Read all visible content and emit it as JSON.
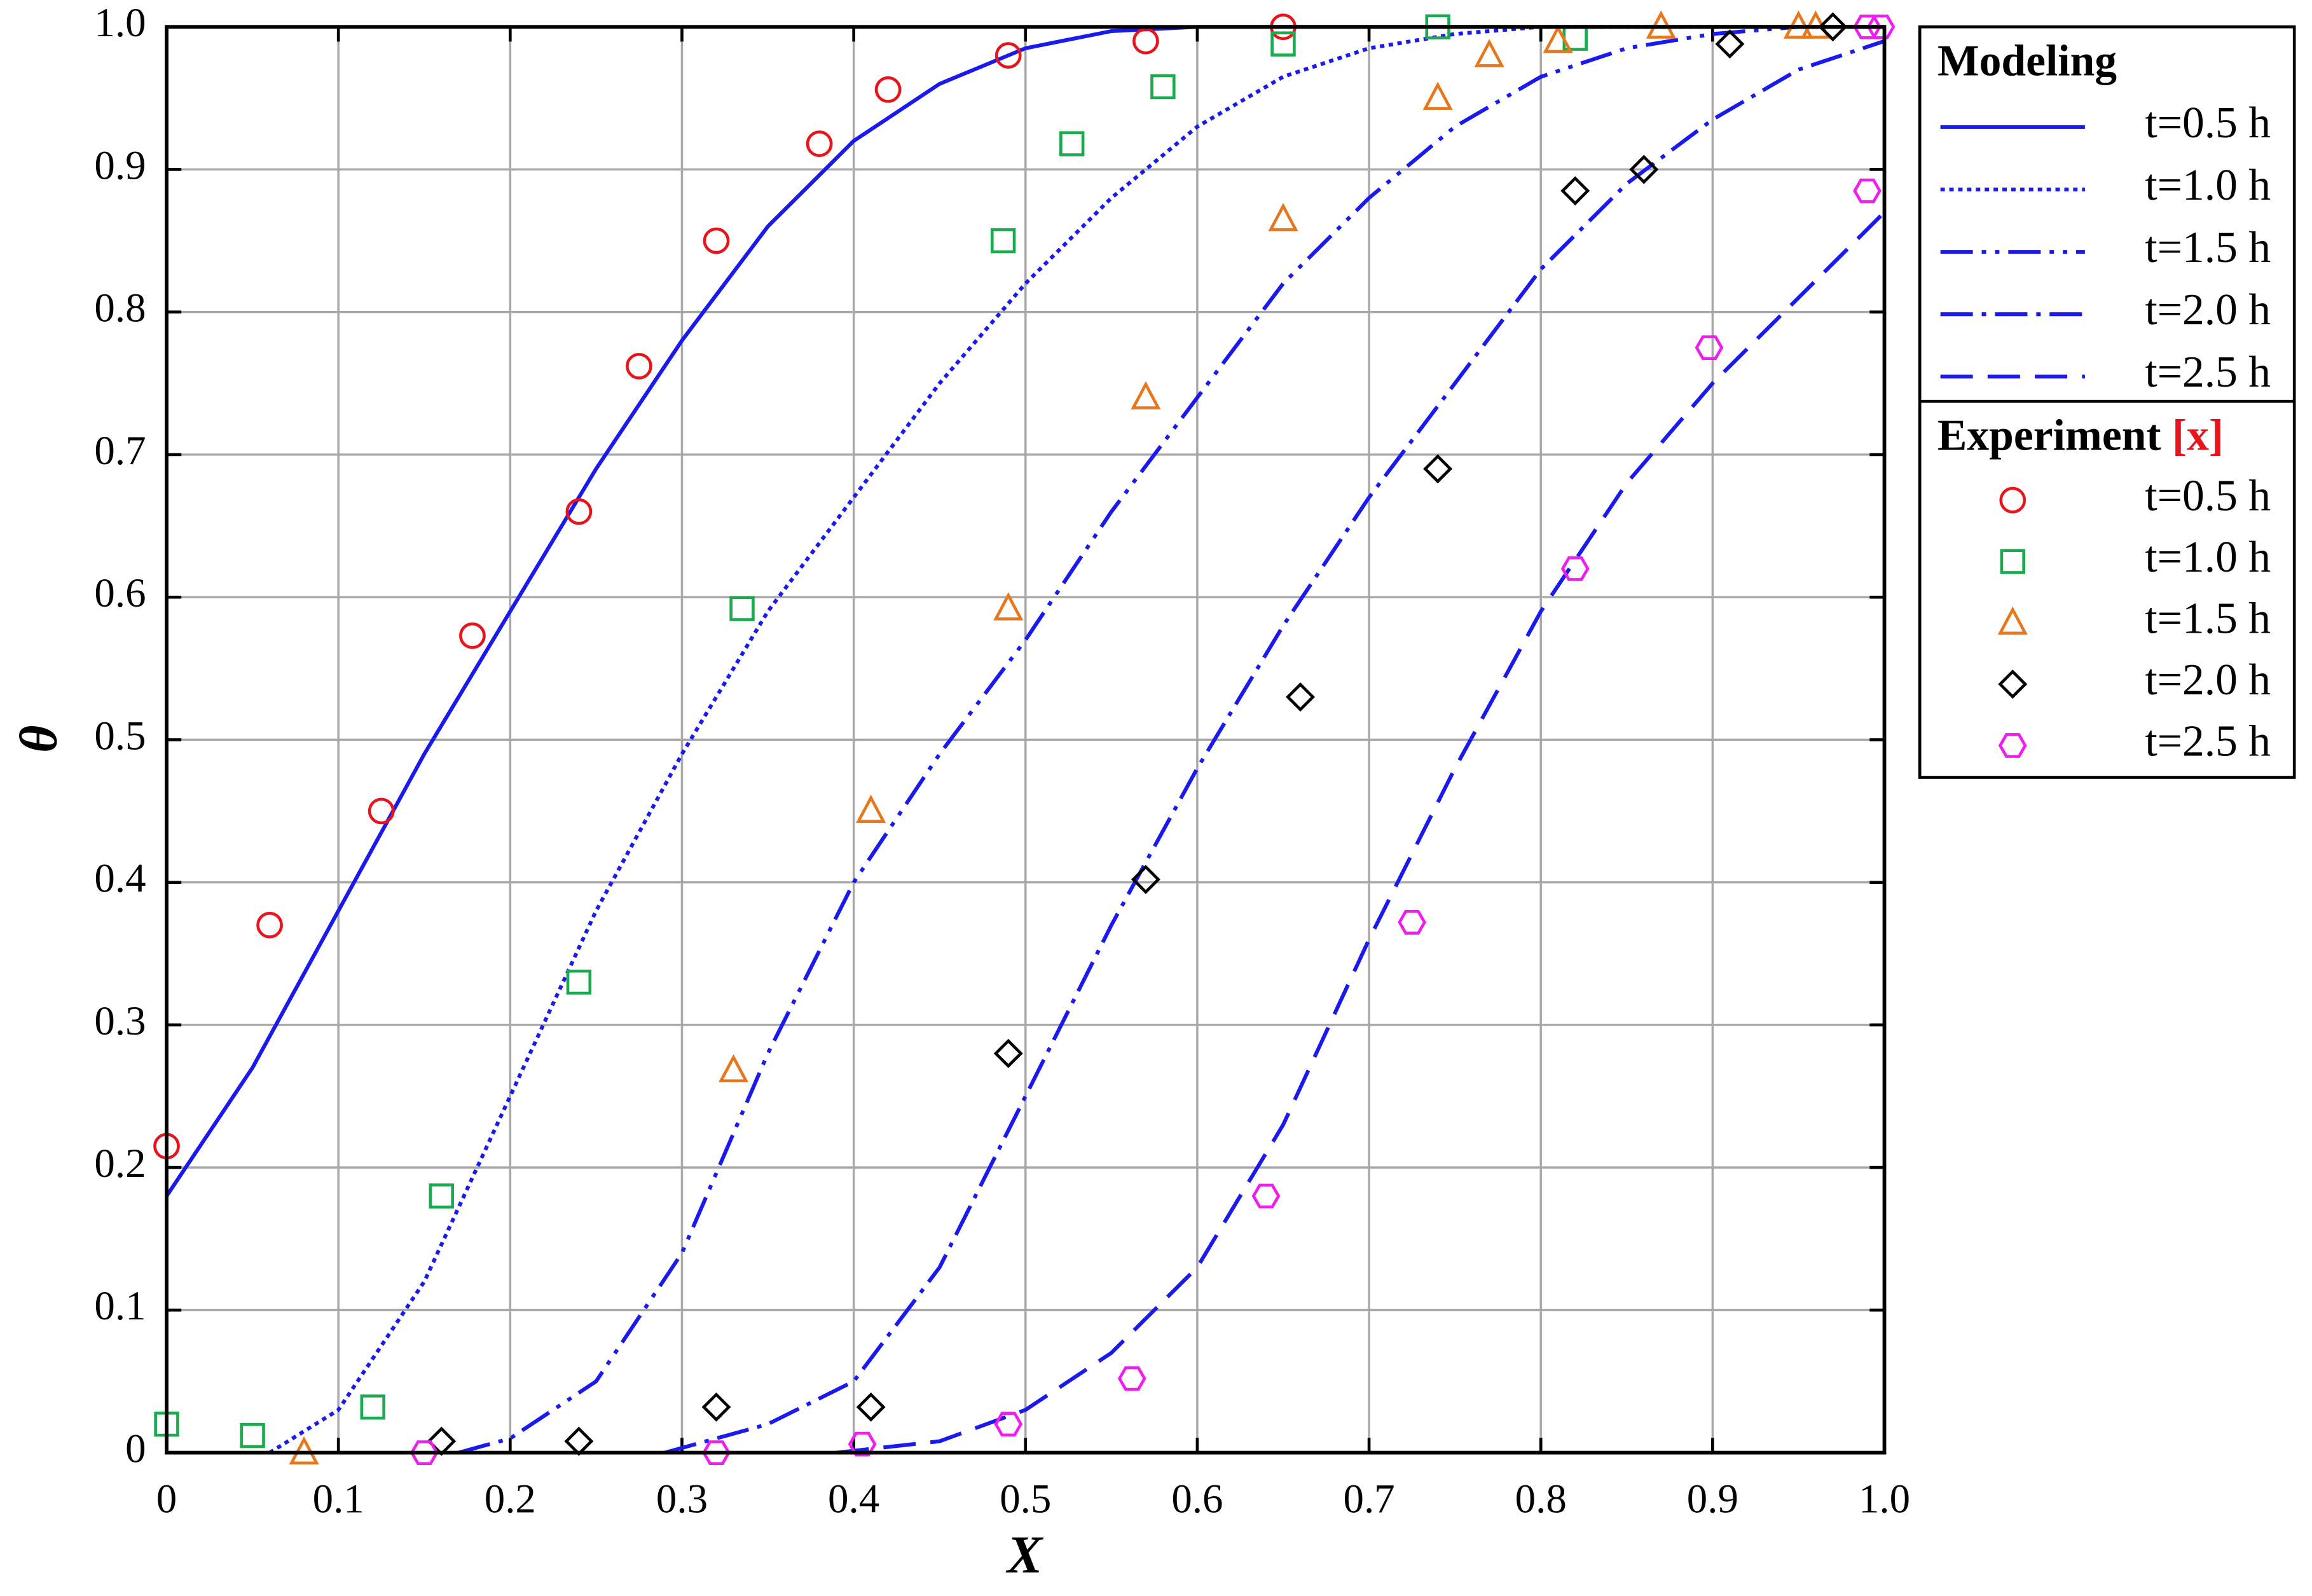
{
  "chart_data": {
    "type": "line",
    "x_label": "X",
    "y_label": "θ",
    "xlim": [
      0,
      1
    ],
    "ylim": [
      0,
      1
    ],
    "xticks": [
      0,
      0.1,
      0.2,
      0.3,
      0.4,
      0.5,
      0.6,
      0.7,
      0.8,
      0.9,
      {
        "value": 1,
        "label": "1.0"
      }
    ],
    "yticks": [
      0,
      0.1,
      0.2,
      0.3,
      0.4,
      0.5,
      0.6,
      0.7,
      0.8,
      0.9,
      {
        "value": 1,
        "label": "1.0"
      }
    ],
    "grid": true,
    "legend": "outside-right",
    "model_title": "Modeling",
    "experiment_title": "Experiment",
    "experiment_ref": "[x]",
    "model_series": [
      {
        "name": "t=0.5 h",
        "color": "#1a1aee",
        "dash": "solid",
        "x": [
          0,
          0.05,
          0.1,
          0.15,
          0.2,
          0.25,
          0.3,
          0.35,
          0.4,
          0.45,
          0.5,
          0.55,
          0.6,
          0.7,
          0.8,
          0.9,
          1
        ],
        "values": [
          0.18,
          0.27,
          0.38,
          0.49,
          0.59,
          0.69,
          0.78,
          0.86,
          0.92,
          0.96,
          0.985,
          0.997,
          1,
          1,
          1,
          1,
          1
        ]
      },
      {
        "name": "t=1.0 h",
        "color": "#1a1aee",
        "dash": "dotted",
        "x": [
          0.06,
          0.1,
          0.15,
          0.2,
          0.25,
          0.3,
          0.35,
          0.4,
          0.45,
          0.5,
          0.55,
          0.6,
          0.65,
          0.7,
          0.75,
          0.8,
          0.9,
          1
        ],
        "values": [
          0,
          0.03,
          0.12,
          0.25,
          0.38,
          0.49,
          0.59,
          0.67,
          0.75,
          0.82,
          0.88,
          0.93,
          0.965,
          0.985,
          0.995,
          1,
          1,
          1
        ]
      },
      {
        "name": "t=1.5 h",
        "color": "#1a1aee",
        "dash": "dash-dot-dot",
        "x": [
          0.17,
          0.2,
          0.25,
          0.3,
          0.35,
          0.4,
          0.45,
          0.5,
          0.55,
          0.6,
          0.65,
          0.7,
          0.75,
          0.8,
          0.85,
          0.9,
          0.95,
          1
        ],
        "values": [
          0,
          0.01,
          0.05,
          0.14,
          0.28,
          0.4,
          0.49,
          0.57,
          0.66,
          0.74,
          0.82,
          0.88,
          0.93,
          0.965,
          0.985,
          0.995,
          1,
          1
        ]
      },
      {
        "name": "t=2.0 h",
        "color": "#1a1aee",
        "dash": "dash-dot",
        "x": [
          0.29,
          0.35,
          0.4,
          0.45,
          0.5,
          0.55,
          0.6,
          0.65,
          0.7,
          0.75,
          0.8,
          0.85,
          0.9,
          0.95,
          1
        ],
        "values": [
          0,
          0.02,
          0.05,
          0.13,
          0.25,
          0.37,
          0.48,
          0.58,
          0.67,
          0.75,
          0.83,
          0.89,
          0.935,
          0.97,
          0.99
        ]
      },
      {
        "name": "t=2.5 h",
        "color": "#1a1aee",
        "dash": "dashed",
        "x": [
          0.39,
          0.45,
          0.5,
          0.55,
          0.6,
          0.65,
          0.7,
          0.75,
          0.8,
          0.85,
          0.9,
          0.95,
          1
        ],
        "values": [
          0,
          0.008,
          0.03,
          0.07,
          0.13,
          0.23,
          0.36,
          0.48,
          0.59,
          0.68,
          0.75,
          0.81,
          0.87
        ]
      }
    ],
    "experiment_series": [
      {
        "name": "t=0.5 h",
        "color": "#e8141b",
        "marker": "circle",
        "x": [
          0,
          0.06,
          0.125,
          0.178,
          0.24,
          0.275,
          0.32,
          0.38,
          0.42,
          0.49,
          0.57,
          0.65
        ],
        "values": [
          0.215,
          0.37,
          0.45,
          0.573,
          0.66,
          0.762,
          0.85,
          0.918,
          0.956,
          0.98,
          0.99,
          1
        ]
      },
      {
        "name": "t=1.0 h",
        "color": "#1aab4f",
        "marker": "square",
        "x": [
          0,
          0.05,
          0.12,
          0.16,
          0.24,
          0.335,
          0.487,
          0.527,
          0.58,
          0.65,
          0.74,
          0.82
        ],
        "values": [
          0.02,
          0.012,
          0.032,
          0.18,
          0.33,
          0.592,
          0.85,
          0.918,
          0.958,
          0.988,
          1,
          0.992
        ]
      },
      {
        "name": "t=1.5 h",
        "color": "#e8761b",
        "marker": "triangle",
        "x": [
          0.08,
          0.33,
          0.41,
          0.49,
          0.57,
          0.65,
          0.74,
          0.77,
          0.81,
          0.87,
          0.95,
          0.96
        ],
        "values": [
          0,
          0.268,
          0.45,
          0.592,
          0.74,
          0.865,
          0.95,
          0.98,
          0.99,
          1,
          1,
          1
        ]
      },
      {
        "name": "t=2.0 h",
        "color": "#000000",
        "marker": "diamond",
        "x": [
          0.16,
          0.24,
          0.32,
          0.41,
          0.49,
          0.57,
          0.66,
          0.74,
          0.82,
          0.86,
          0.91,
          0.97
        ],
        "values": [
          0.008,
          0.008,
          0.032,
          0.032,
          0.28,
          0.402,
          0.53,
          0.69,
          0.885,
          0.9,
          0.988,
          1
        ]
      },
      {
        "name": "t=2.5 h",
        "color": "#f01cf0",
        "marker": "hexagon",
        "x": [
          0.15,
          0.32,
          0.405,
          0.49,
          0.562,
          0.64,
          0.725,
          0.82,
          0.898,
          0.99,
          0.998,
          0.99
        ],
        "values": [
          0,
          0,
          0.006,
          0.02,
          0.052,
          0.18,
          0.372,
          0.62,
          0.775,
          1,
          1,
          0.885
        ]
      }
    ]
  }
}
